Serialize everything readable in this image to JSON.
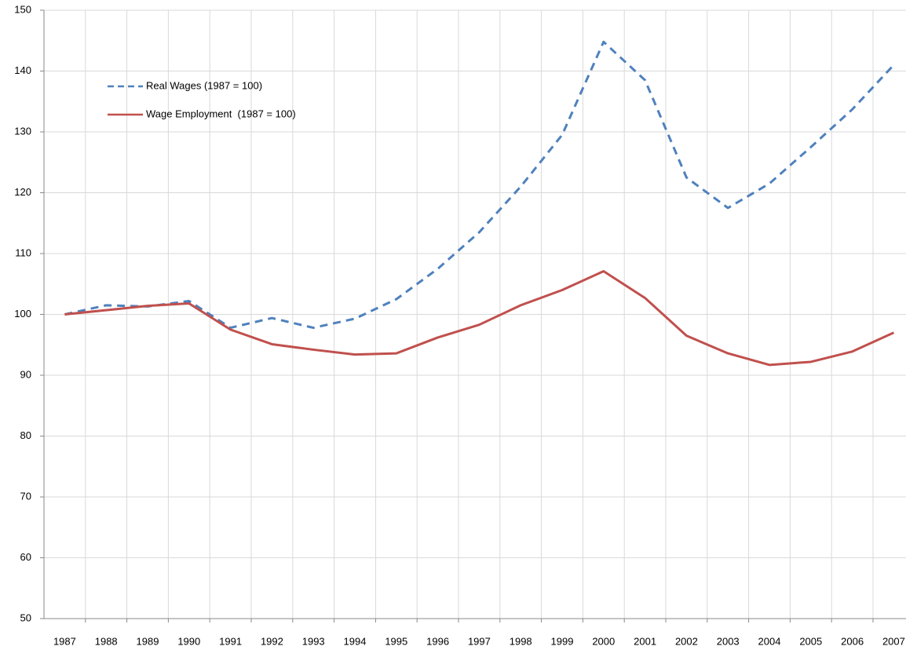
{
  "chart_data": {
    "type": "line",
    "categories": [
      "1987",
      "1988",
      "1989",
      "1990",
      "1991",
      "1992",
      "1993",
      "1994",
      "1995",
      "1996",
      "1997",
      "1998",
      "1999",
      "2000",
      "2001",
      "2002",
      "2003",
      "2004",
      "2005",
      "2006",
      "2007"
    ],
    "series": [
      {
        "name": "Real Wages (1987 = 100)",
        "color": "#4f81bd",
        "style": "dashed",
        "values": [
          100,
          101.5,
          101.3,
          102.2,
          97.8,
          99.4,
          97.8,
          99.3,
          102.5,
          107.5,
          113.5,
          121,
          129.5,
          144.8,
          138.5,
          122.5,
          117.5,
          121.5,
          127.5,
          133.7,
          141
        ]
      },
      {
        "name": "Wage Employment  (1987 = 100)",
        "color": "#c0504d",
        "style": "solid",
        "values": [
          100,
          100.7,
          101.4,
          101.8,
          97.5,
          95.1,
          94.2,
          93.4,
          93.6,
          96.2,
          98.3,
          101.5,
          104,
          107.1,
          102.7,
          96.5,
          93.6,
          91.7,
          92.2,
          93.9,
          97
        ]
      }
    ],
    "ylim": [
      50,
      150
    ],
    "yticks": [
      50,
      60,
      70,
      80,
      90,
      100,
      110,
      120,
      130,
      140,
      150
    ],
    "grid": true,
    "legend": "upper-left"
  }
}
